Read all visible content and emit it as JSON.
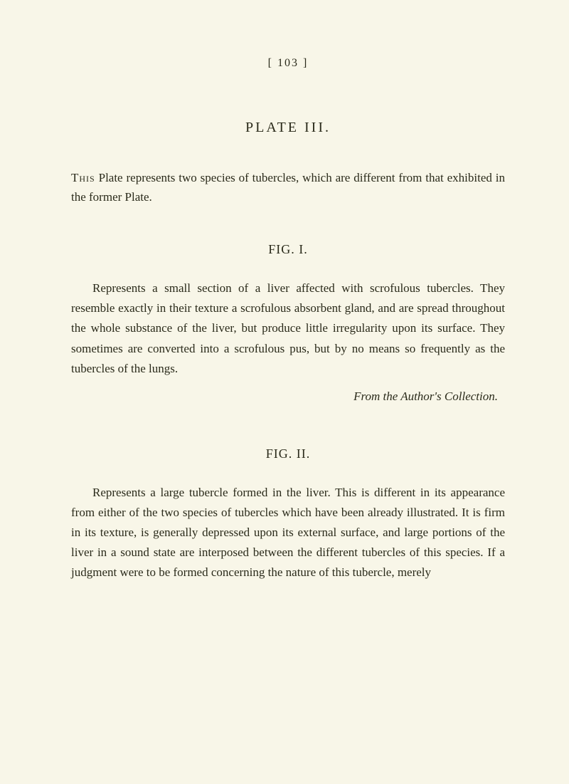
{
  "header": {
    "page_indicator": "[ 103 ]"
  },
  "plate": {
    "title": "PLATE III."
  },
  "intro": {
    "first_word": "This",
    "rest": " Plate represents two species of tubercles, which are different from that exhibited in the former Plate."
  },
  "fig1": {
    "title": "FIG. I.",
    "body": "Represents a small section of a liver affected with scrofulous tubercles. They resemble exactly in their texture a scrofulous absorbent gland, and are spread throughout the whole substance of the liver, but produce little irregularity upon its surface. They sometimes are converted into a scrofulous pus, but by no means so frequently as the tubercles of the lungs.",
    "citation": "From the Author's Collection."
  },
  "fig2": {
    "title": "FIG. II.",
    "body": "Represents a large tubercle formed in the liver. This is different in its appearance from either of the two species of tubercles which have been already illustrated. It is firm in its texture, is generally depressed upon its external surface, and large portions of the liver in a sound state are interposed between the different tubercles of this species. If a judgment were to be formed concerning the nature of this tubercle, merely"
  },
  "colors": {
    "background": "#f8f6e8",
    "text": "#2a2a1a"
  },
  "typography": {
    "body_fontsize": 17,
    "title_fontsize": 20,
    "fig_title_fontsize": 18,
    "line_height": 1.65,
    "font_family": "Georgia, Times New Roman, serif"
  }
}
